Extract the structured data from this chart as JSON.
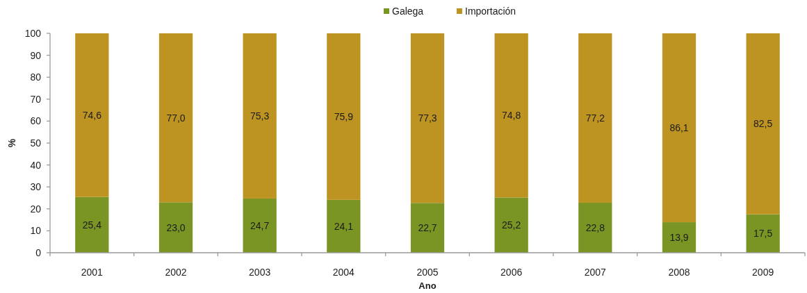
{
  "chart_data": {
    "type": "bar",
    "stacked": true,
    "xlabel": "Ano",
    "ylabel": "%",
    "legend": "top",
    "categories": [
      "2001",
      "2002",
      "2003",
      "2004",
      "2005",
      "2006",
      "2007",
      "2008",
      "2009"
    ],
    "series": [
      {
        "name": "Galega",
        "color": "#7b9524",
        "values": [
          25.4,
          23.0,
          24.7,
          24.1,
          22.7,
          25.2,
          22.8,
          13.9,
          17.5
        ],
        "value_labels": [
          "25,4",
          "23,0",
          "24,7",
          "24,1",
          "22,7",
          "25,2",
          "22,8",
          "13,9",
          "17,5"
        ]
      },
      {
        "name": "Importación",
        "color": "#bd9422",
        "values": [
          74.6,
          77.0,
          75.3,
          75.9,
          77.3,
          74.8,
          77.2,
          86.1,
          82.5
        ],
        "value_labels": [
          "74,6",
          "77,0",
          "75,3",
          "75,9",
          "77,3",
          "74,8",
          "77,2",
          "86,1",
          "82,5"
        ]
      }
    ],
    "ylim": [
      0,
      100
    ],
    "yticks": [
      0,
      10,
      20,
      30,
      40,
      50,
      60,
      70,
      80,
      90,
      100
    ]
  }
}
